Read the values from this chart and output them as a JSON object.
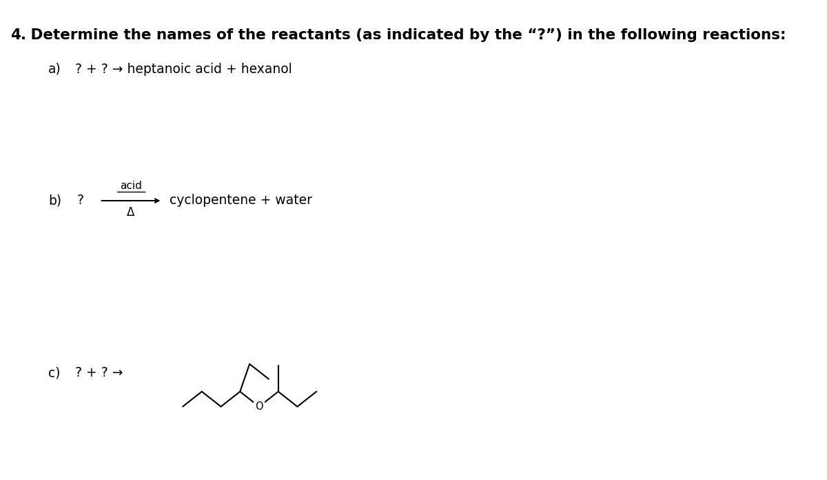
{
  "background_color": "#ffffff",
  "title_number": "4.",
  "title_text": " Determine the names of the reactants (as indicated by the “?”) in the following reactions:",
  "title_fontsize": 15.5,
  "part_a_label": "a)",
  "part_a_text": " ? + ? → heptanoic acid + hexanol",
  "part_a_fontsize": 13.5,
  "part_b_label": "b)",
  "part_b_question": "?",
  "part_b_arrow_label_top": "acid",
  "part_b_arrow_label_bottom": "Δ",
  "part_b_products": "cyclopentene + water",
  "part_b_fontsize": 13.5,
  "part_c_label": "c)",
  "part_c_text": " ? + ? →",
  "part_c_fontsize": 13.5,
  "fig_width": 12.0,
  "fig_height": 6.96,
  "dpi": 100
}
